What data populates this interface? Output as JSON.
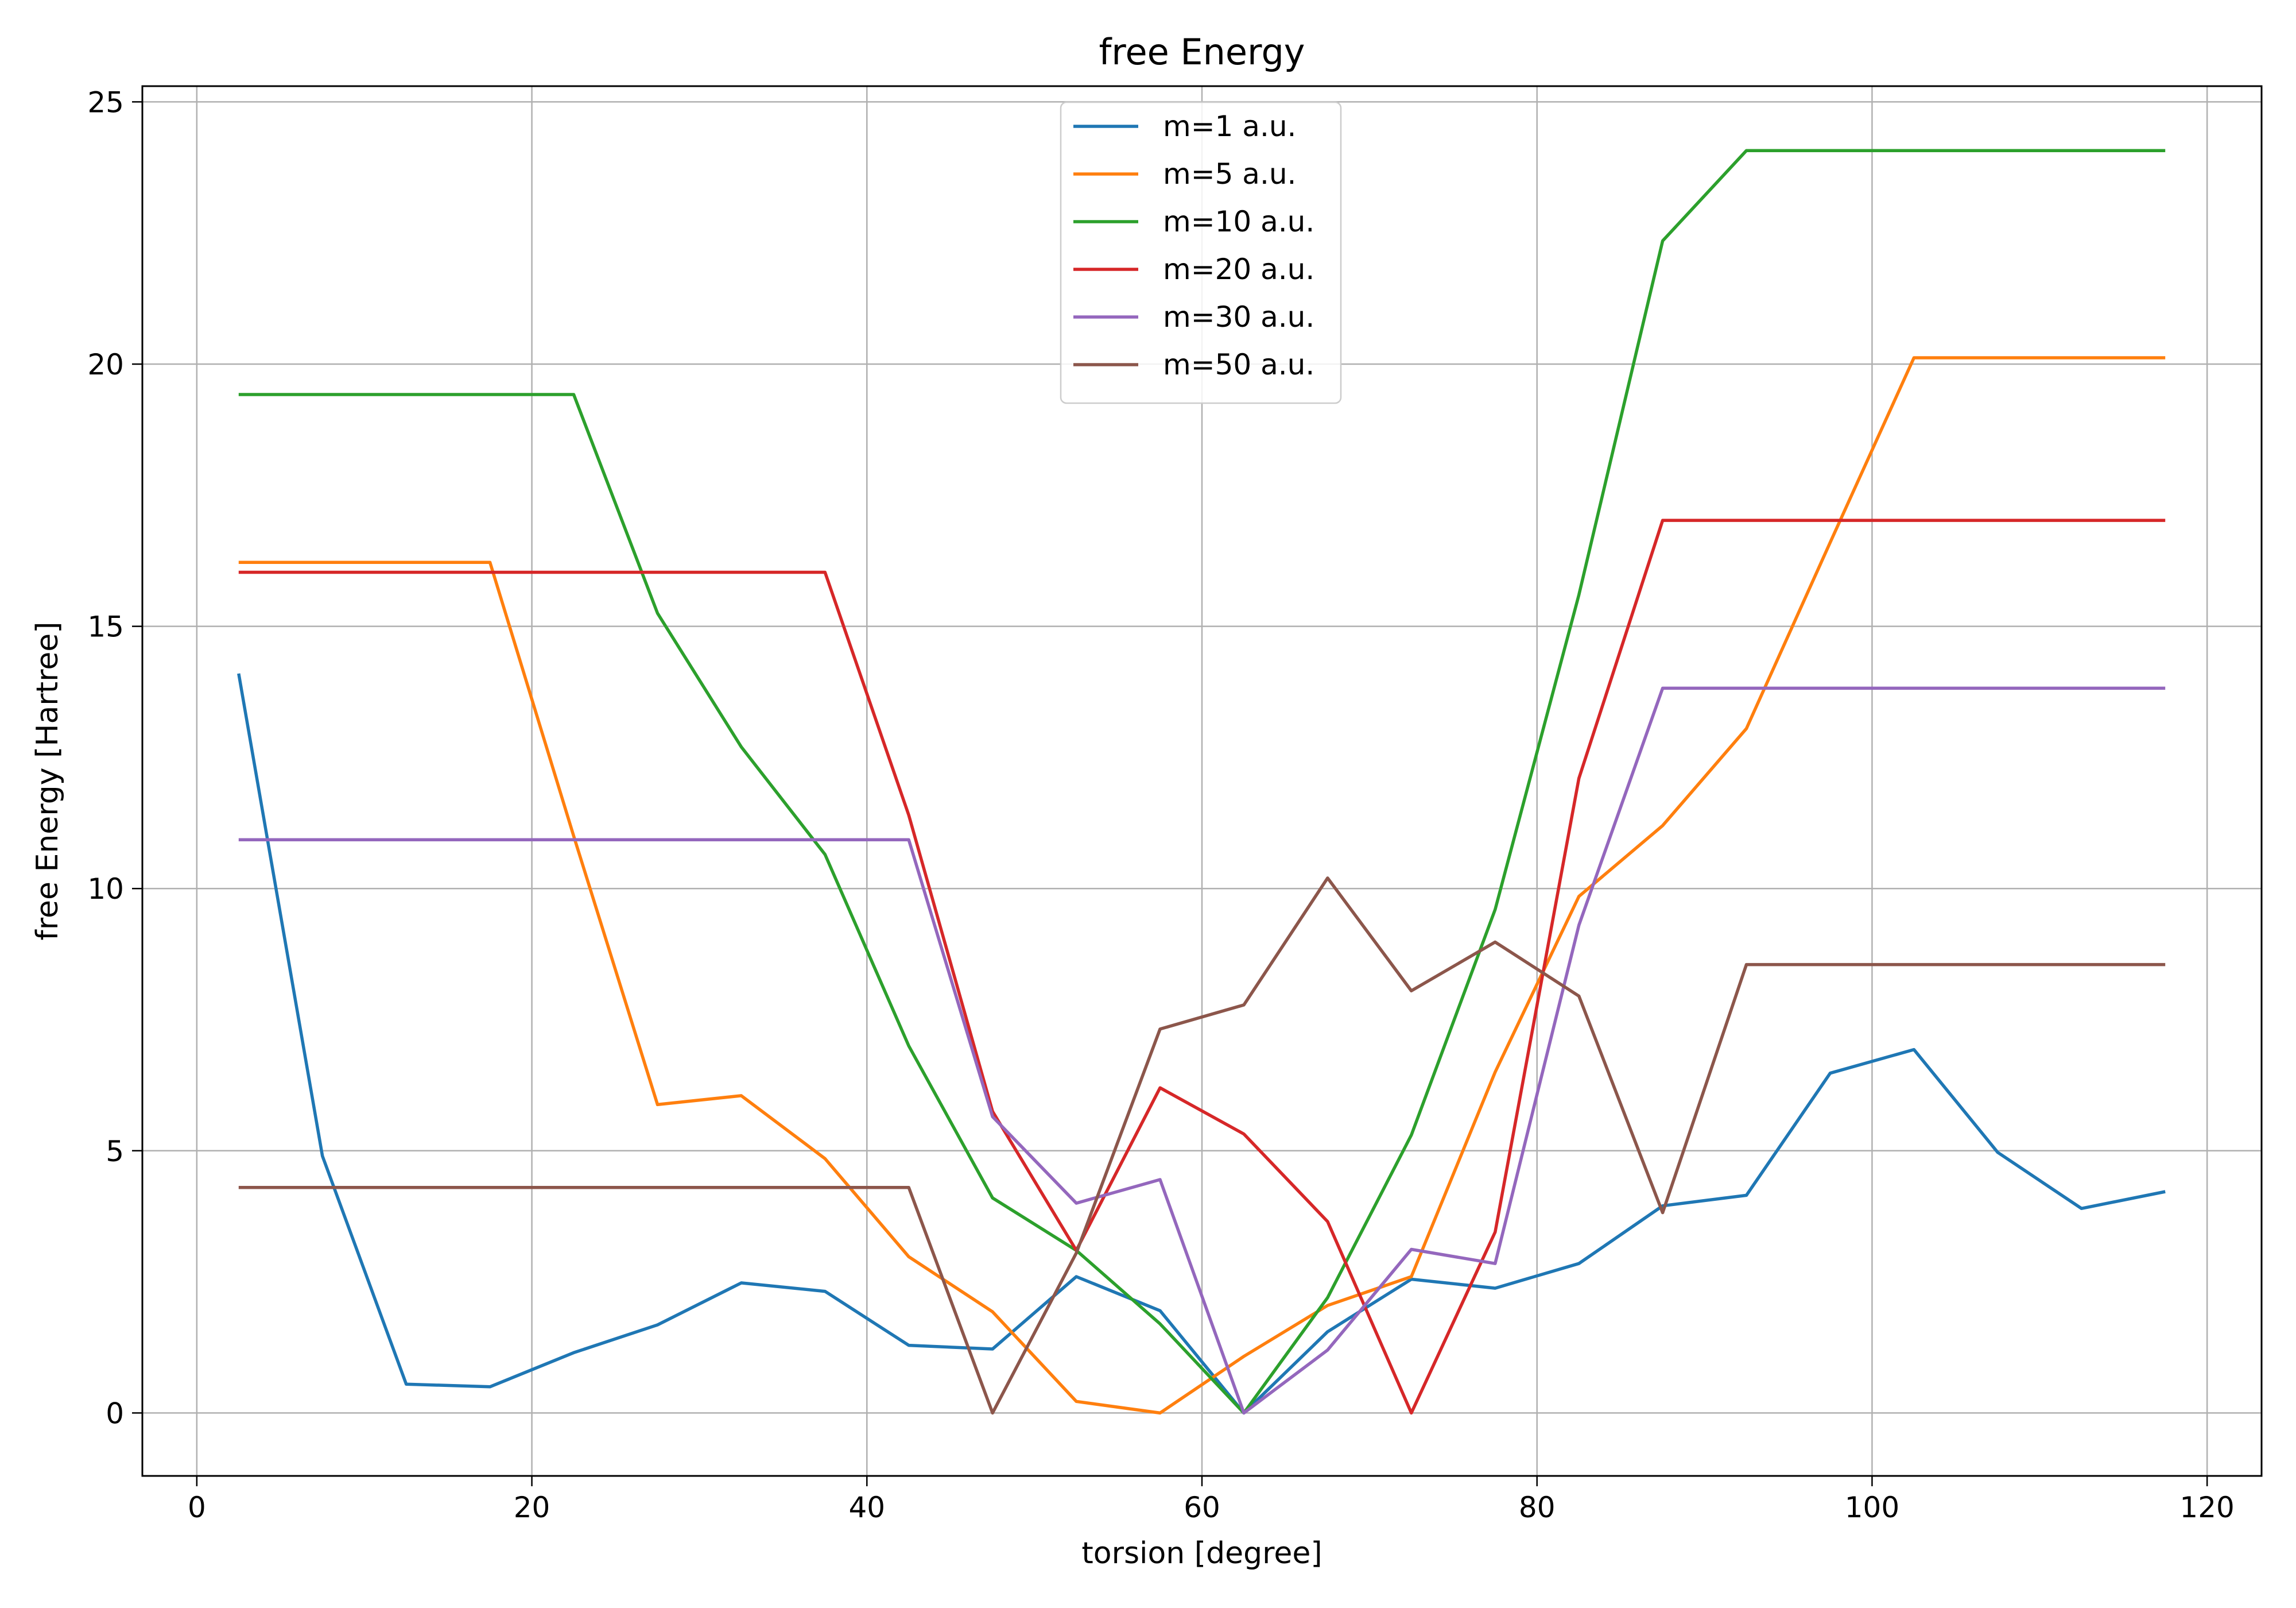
{
  "chart_data": {
    "type": "line",
    "title": "free Energy",
    "xlabel": "torsion [degree]",
    "ylabel": "free Energy [Hartree]",
    "xlim": [
      -3.25,
      123.25
    ],
    "ylim": [
      -1.2,
      25.3
    ],
    "xticks": [
      0,
      20,
      40,
      60,
      80,
      100,
      120
    ],
    "yticks": [
      0,
      5,
      10,
      15,
      20,
      25
    ],
    "grid": true,
    "legend_position": "top-center",
    "x": [
      2.5,
      7.5,
      12.5,
      17.5,
      22.5,
      27.5,
      32.5,
      37.5,
      42.5,
      47.5,
      52.5,
      57.5,
      62.5,
      67.5,
      72.5,
      77.5,
      82.5,
      87.5,
      92.5,
      97.5,
      102.5,
      107.5,
      112.5,
      117.5
    ],
    "series": [
      {
        "name": "m=1 a.u.",
        "color": "#1f77b4",
        "values": [
          14.1,
          4.9,
          0.55,
          0.5,
          1.15,
          1.68,
          2.48,
          2.32,
          1.29,
          1.22,
          2.6,
          1.95,
          0.0,
          1.55,
          2.55,
          2.38,
          2.85,
          3.95,
          4.15,
          6.48,
          6.93,
          4.97,
          3.9,
          4.22
        ]
      },
      {
        "name": "m=5 a.u.",
        "color": "#ff7f0e",
        "values": [
          16.22,
          16.22,
          16.22,
          16.22,
          11.0,
          5.88,
          6.05,
          4.85,
          2.98,
          1.93,
          0.22,
          0.0,
          1.08,
          2.05,
          2.6,
          6.5,
          9.85,
          11.2,
          13.05,
          16.6,
          20.12,
          20.12,
          20.12,
          20.12
        ]
      },
      {
        "name": "m=10 a.u.",
        "color": "#2ca02c",
        "values": [
          19.42,
          19.42,
          19.42,
          19.42,
          19.42,
          15.25,
          12.7,
          10.65,
          7.0,
          4.1,
          3.1,
          1.7,
          0.0,
          2.2,
          5.3,
          9.6,
          15.6,
          22.35,
          24.07,
          24.07,
          24.07,
          24.07,
          24.07,
          24.07
        ]
      },
      {
        "name": "m=20 a.u.",
        "color": "#d62728",
        "values": [
          16.03,
          16.03,
          16.03,
          16.03,
          16.03,
          16.03,
          16.03,
          16.03,
          11.4,
          5.75,
          3.1,
          6.2,
          5.32,
          3.65,
          0.0,
          3.45,
          12.1,
          17.02,
          17.02,
          17.02,
          17.02,
          17.02,
          17.02,
          17.02
        ]
      },
      {
        "name": "m=30 a.u.",
        "color": "#9467bd",
        "values": [
          10.93,
          10.93,
          10.93,
          10.93,
          10.93,
          10.93,
          10.93,
          10.93,
          10.93,
          5.65,
          4.0,
          4.45,
          0.0,
          1.2,
          3.12,
          2.85,
          9.3,
          13.82,
          13.82,
          13.82,
          13.82,
          13.82,
          13.82,
          13.82
        ]
      },
      {
        "name": "m=50 a.u.",
        "color": "#8c564b",
        "values": [
          4.3,
          4.3,
          4.3,
          4.3,
          4.3,
          4.3,
          4.3,
          4.3,
          4.3,
          0.0,
          3.05,
          7.32,
          7.78,
          10.2,
          8.05,
          8.98,
          7.95,
          3.82,
          8.55,
          8.55,
          8.55,
          8.55,
          8.55,
          8.55
        ]
      }
    ]
  }
}
